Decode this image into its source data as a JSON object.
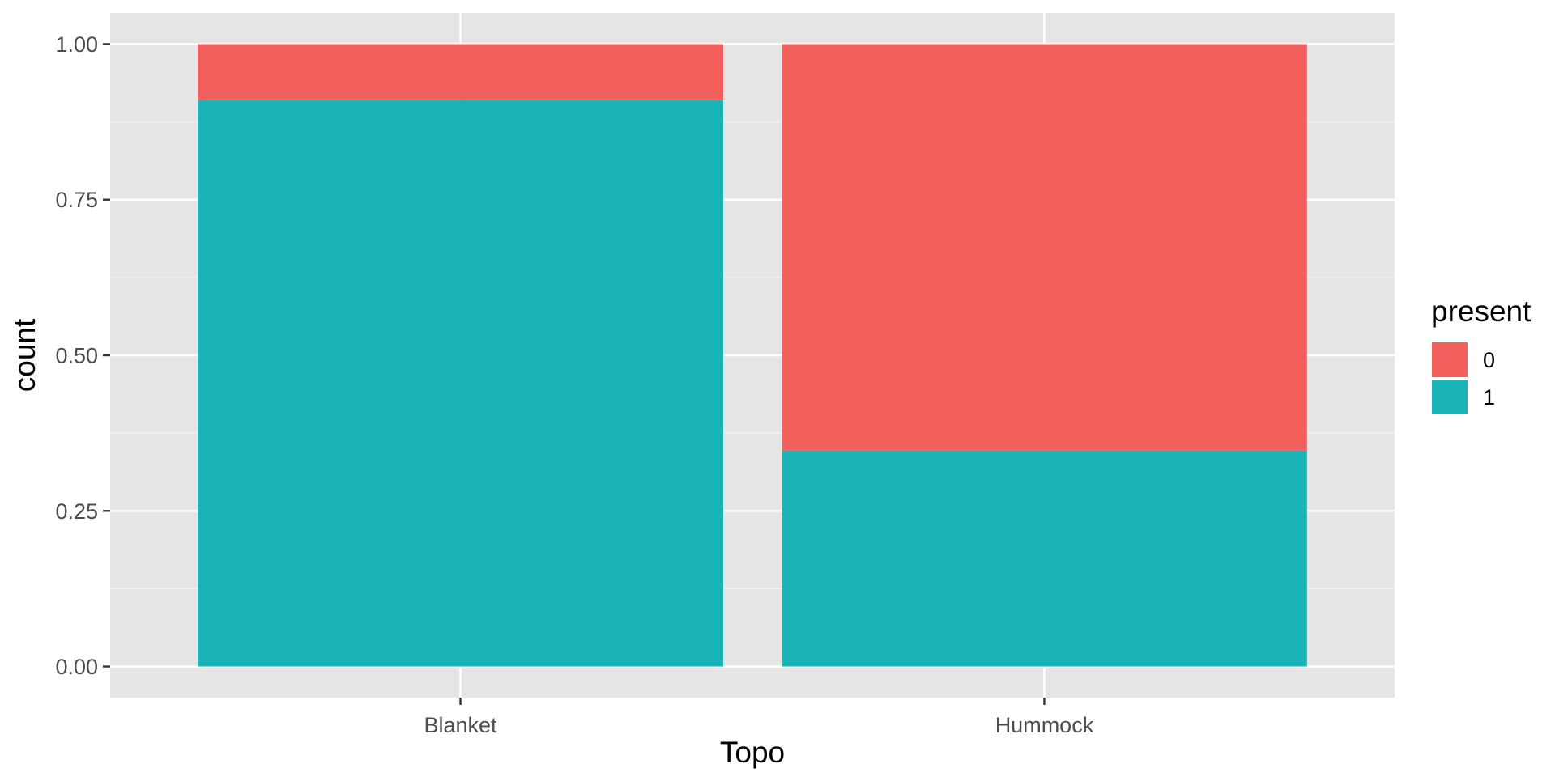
{
  "chart_data": {
    "type": "bar",
    "stacked": true,
    "categories": [
      "Blanket",
      "Hummock"
    ],
    "series": [
      {
        "name": "0",
        "values": [
          0.09,
          0.653
        ]
      },
      {
        "name": "1",
        "values": [
          0.91,
          0.347
        ]
      }
    ],
    "xlabel": "Topo",
    "ylabel": "count",
    "ylim": [
      -0.05,
      1.05
    ],
    "yticks": [
      0,
      0.25,
      0.5,
      0.75,
      1
    ],
    "ytick_labels": [
      "0.00",
      "0.25",
      "0.50",
      "0.75",
      "1.00"
    ],
    "grid": true,
    "legend": {
      "title": "present",
      "position": "right"
    }
  },
  "colors": {
    "panel_background": "#e5e5e5",
    "grid_major": "#ffffff",
    "grid_minor": "#f2f2f2",
    "series": {
      "0": "#f25f5c",
      "1": "#1ab3b6"
    }
  }
}
